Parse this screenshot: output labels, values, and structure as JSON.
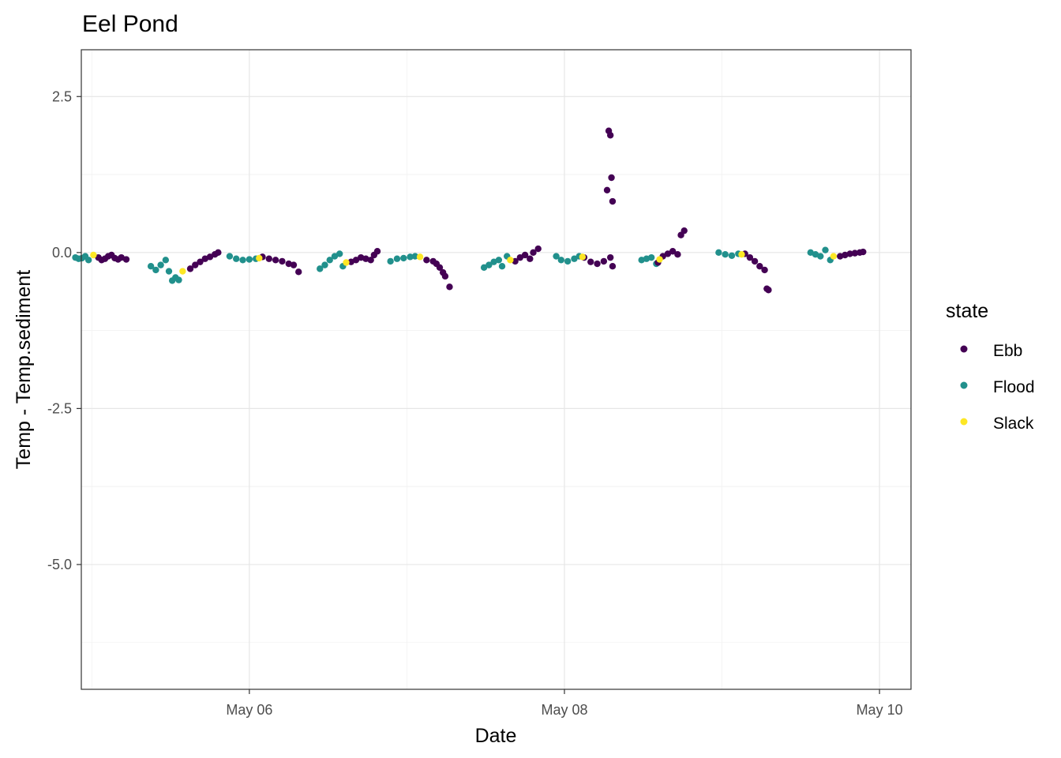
{
  "chart_data": {
    "type": "scatter",
    "title": "Eel Pond",
    "xlabel": "Date",
    "ylabel": "Temp - Temp.sediment",
    "x_unit": "datetime",
    "xlim": [
      "2024-05-04T22:24",
      "2024-05-10T04:48"
    ],
    "ylim": [
      -7.0,
      3.25
    ],
    "x_ticks": [
      "2024-05-06T00:00",
      "2024-05-08T00:00",
      "2024-05-10T00:00"
    ],
    "x_tick_labels": [
      "May 06",
      "May 08",
      "May 10"
    ],
    "y_ticks": [
      2.5,
      0.0,
      -2.5,
      -5.0
    ],
    "y_tick_labels": [
      "2.5",
      "0.0",
      "-2.5",
      "-5.0"
    ],
    "grid": true,
    "legend": {
      "title": "state",
      "position": "right",
      "entries": [
        "Ebb",
        "Flood",
        "Slack"
      ]
    },
    "series": [
      {
        "name": "Ebb",
        "color": "#440154",
        "points": [
          [
            "2024-05-05T01:00",
            -0.08
          ],
          [
            "2024-05-05T01:30",
            -0.12
          ],
          [
            "2024-05-05T02:00",
            -0.1
          ],
          [
            "2024-05-05T02:30",
            -0.06
          ],
          [
            "2024-05-05T03:00",
            -0.04
          ],
          [
            "2024-05-05T03:30",
            -0.09
          ],
          [
            "2024-05-05T04:00",
            -0.11
          ],
          [
            "2024-05-05T04:30",
            -0.08
          ],
          [
            "2024-05-05T05:15",
            -0.11
          ],
          [
            "2024-05-05T15:00",
            -0.26
          ],
          [
            "2024-05-05T15:45",
            -0.2
          ],
          [
            "2024-05-05T16:30",
            -0.15
          ],
          [
            "2024-05-05T17:15",
            -0.1
          ],
          [
            "2024-05-05T18:00",
            -0.07
          ],
          [
            "2024-05-05T18:45",
            -0.03
          ],
          [
            "2024-05-05T19:15",
            -0.0
          ],
          [
            "2024-05-06T02:00",
            -0.07
          ],
          [
            "2024-05-06T03:00",
            -0.1
          ],
          [
            "2024-05-06T04:00",
            -0.12
          ],
          [
            "2024-05-06T05:00",
            -0.14
          ],
          [
            "2024-05-06T06:00",
            -0.18
          ],
          [
            "2024-05-06T06:45",
            -0.2
          ],
          [
            "2024-05-06T07:30",
            -0.31
          ],
          [
            "2024-05-06T15:30",
            -0.15
          ],
          [
            "2024-05-06T16:15",
            -0.12
          ],
          [
            "2024-05-06T17:00",
            -0.08
          ],
          [
            "2024-05-06T17:45",
            -0.1
          ],
          [
            "2024-05-06T18:30",
            -0.12
          ],
          [
            "2024-05-06T19:00",
            -0.04
          ],
          [
            "2024-05-06T19:30",
            0.02
          ],
          [
            "2024-05-07T03:00",
            -0.12
          ],
          [
            "2024-05-07T04:00",
            -0.14
          ],
          [
            "2024-05-07T04:30",
            -0.18
          ],
          [
            "2024-05-07T05:00",
            -0.24
          ],
          [
            "2024-05-07T05:30",
            -0.32
          ],
          [
            "2024-05-07T05:50",
            -0.38
          ],
          [
            "2024-05-07T06:30",
            -0.55
          ],
          [
            "2024-05-07T16:30",
            -0.14
          ],
          [
            "2024-05-07T17:15",
            -0.08
          ],
          [
            "2024-05-07T18:00",
            -0.04
          ],
          [
            "2024-05-07T18:45",
            -0.1
          ],
          [
            "2024-05-07T19:15",
            -0.0
          ],
          [
            "2024-05-07T20:00",
            0.06
          ],
          [
            "2024-05-08T03:00",
            -0.08
          ],
          [
            "2024-05-08T04:00",
            -0.15
          ],
          [
            "2024-05-08T05:00",
            -0.18
          ],
          [
            "2024-05-08T06:00",
            -0.14
          ],
          [
            "2024-05-08T06:30",
            1.0
          ],
          [
            "2024-05-08T06:45",
            1.95
          ],
          [
            "2024-05-08T07:00",
            1.88
          ],
          [
            "2024-05-08T07:10",
            1.2
          ],
          [
            "2024-05-08T07:20",
            0.82
          ],
          [
            "2024-05-08T07:00",
            -0.08
          ],
          [
            "2024-05-08T07:20",
            -0.22
          ],
          [
            "2024-05-08T14:15",
            -0.16
          ],
          [
            "2024-05-08T15:00",
            -0.06
          ],
          [
            "2024-05-08T15:45",
            -0.02
          ],
          [
            "2024-05-08T16:30",
            0.02
          ],
          [
            "2024-05-08T17:15",
            -0.03
          ],
          [
            "2024-05-08T17:45",
            0.28
          ],
          [
            "2024-05-08T18:15",
            0.35
          ],
          [
            "2024-05-09T03:30",
            -0.02
          ],
          [
            "2024-05-09T04:15",
            -0.08
          ],
          [
            "2024-05-09T05:00",
            -0.14
          ],
          [
            "2024-05-09T05:45",
            -0.22
          ],
          [
            "2024-05-09T06:30",
            -0.28
          ],
          [
            "2024-05-09T06:50",
            -0.58
          ],
          [
            "2024-05-09T07:05",
            -0.6
          ],
          [
            "2024-05-09T18:00",
            -0.06
          ],
          [
            "2024-05-09T18:45",
            -0.04
          ],
          [
            "2024-05-09T19:30",
            -0.02
          ],
          [
            "2024-05-09T20:15",
            -0.01
          ],
          [
            "2024-05-09T21:00",
            0.0
          ],
          [
            "2024-05-09T21:30",
            0.01
          ]
        ]
      },
      {
        "name": "Flood",
        "color": "#21908C",
        "points": [
          [
            "2024-05-04T21:30",
            -0.08
          ],
          [
            "2024-05-04T22:00",
            -0.1
          ],
          [
            "2024-05-04T22:30",
            -0.09
          ],
          [
            "2024-05-04T23:00",
            -0.06
          ],
          [
            "2024-05-04T23:30",
            -0.12
          ],
          [
            "2024-05-05T09:00",
            -0.22
          ],
          [
            "2024-05-05T09:45",
            -0.28
          ],
          [
            "2024-05-05T10:30",
            -0.2
          ],
          [
            "2024-05-05T11:15",
            -0.12
          ],
          [
            "2024-05-05T11:45",
            -0.3
          ],
          [
            "2024-05-05T12:15",
            -0.45
          ],
          [
            "2024-05-05T12:45",
            -0.4
          ],
          [
            "2024-05-05T13:15",
            -0.44
          ],
          [
            "2024-05-05T21:00",
            -0.06
          ],
          [
            "2024-05-05T22:00",
            -0.1
          ],
          [
            "2024-05-05T23:00",
            -0.12
          ],
          [
            "2024-05-06T00:00",
            -0.11
          ],
          [
            "2024-05-06T01:00",
            -0.1
          ],
          [
            "2024-05-06T10:45",
            -0.26
          ],
          [
            "2024-05-06T11:30",
            -0.2
          ],
          [
            "2024-05-06T12:15",
            -0.12
          ],
          [
            "2024-05-06T13:00",
            -0.06
          ],
          [
            "2024-05-06T13:45",
            -0.02
          ],
          [
            "2024-05-06T14:15",
            -0.22
          ],
          [
            "2024-05-06T21:30",
            -0.14
          ],
          [
            "2024-05-06T22:30",
            -0.1
          ],
          [
            "2024-05-06T23:30",
            -0.09
          ],
          [
            "2024-05-07T00:30",
            -0.07
          ],
          [
            "2024-05-07T01:15",
            -0.06
          ],
          [
            "2024-05-07T11:45",
            -0.24
          ],
          [
            "2024-05-07T12:30",
            -0.2
          ],
          [
            "2024-05-07T13:15",
            -0.15
          ],
          [
            "2024-05-07T14:00",
            -0.12
          ],
          [
            "2024-05-07T14:30",
            -0.22
          ],
          [
            "2024-05-07T15:15",
            -0.06
          ],
          [
            "2024-05-07T22:45",
            -0.06
          ],
          [
            "2024-05-07T23:30",
            -0.12
          ],
          [
            "2024-05-08T00:30",
            -0.14
          ],
          [
            "2024-05-08T01:30",
            -0.1
          ],
          [
            "2024-05-08T02:15",
            -0.06
          ],
          [
            "2024-05-08T11:45",
            -0.12
          ],
          [
            "2024-05-08T12:30",
            -0.1
          ],
          [
            "2024-05-08T13:15",
            -0.08
          ],
          [
            "2024-05-08T14:00",
            -0.18
          ],
          [
            "2024-05-08T23:30",
            0.0
          ],
          [
            "2024-05-09T00:30",
            -0.03
          ],
          [
            "2024-05-09T01:30",
            -0.05
          ],
          [
            "2024-05-09T02:30",
            -0.02
          ],
          [
            "2024-05-09T13:30",
            0.0
          ],
          [
            "2024-05-09T14:15",
            -0.03
          ],
          [
            "2024-05-09T15:00",
            -0.06
          ],
          [
            "2024-05-09T15:45",
            0.04
          ],
          [
            "2024-05-09T16:30",
            -0.12
          ]
        ]
      },
      {
        "name": "Slack",
        "color": "#FDE725",
        "points": [
          [
            "2024-05-05T00:15",
            -0.04
          ],
          [
            "2024-05-05T13:50",
            -0.3
          ],
          [
            "2024-05-06T01:30",
            -0.09
          ],
          [
            "2024-05-06T14:45",
            -0.16
          ],
          [
            "2024-05-07T02:00",
            -0.07
          ],
          [
            "2024-05-07T15:45",
            -0.12
          ],
          [
            "2024-05-08T02:45",
            -0.07
          ],
          [
            "2024-05-08T14:30",
            -0.11
          ],
          [
            "2024-05-09T03:00",
            -0.03
          ],
          [
            "2024-05-09T17:00",
            -0.06
          ]
        ]
      }
    ]
  }
}
